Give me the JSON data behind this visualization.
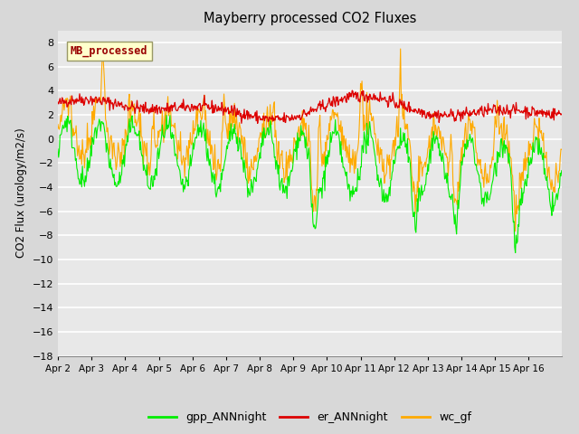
{
  "title": "Mayberry processed CO2 Fluxes",
  "ylabel": "CO2 Flux (urology/m2/s)",
  "ylim": [
    -18,
    9
  ],
  "yticks": [
    -18,
    -16,
    -14,
    -12,
    -10,
    -8,
    -6,
    -4,
    -2,
    0,
    2,
    4,
    6,
    8
  ],
  "bg_color": "#d8d8d8",
  "plot_bg_color": "#e8e8e8",
  "legend_labels": [
    "gpp_ANNnight",
    "er_ANNnight",
    "wc_gf"
  ],
  "legend_colors": [
    "#00ee00",
    "#dd0000",
    "#ffaa00"
  ],
  "inset_label": "MB_processed",
  "inset_bg": "#ffffcc",
  "inset_text_color": "#990000",
  "grid_color": "#ffffff",
  "n_points": 720,
  "seed": 42
}
